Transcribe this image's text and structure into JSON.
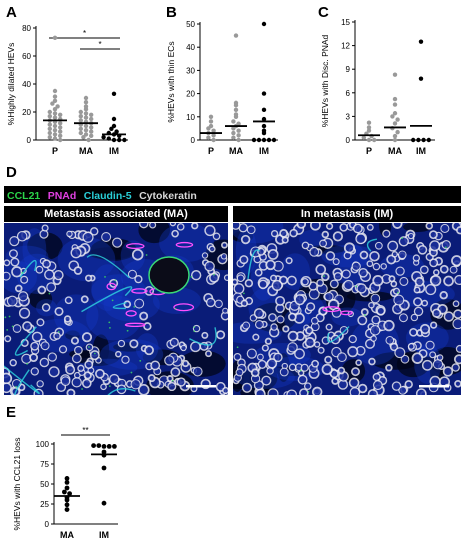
{
  "panels": {
    "A": {
      "letter": "A"
    },
    "B": {
      "letter": "B"
    },
    "C": {
      "letter": "C"
    },
    "D": {
      "letter": "D"
    },
    "E": {
      "letter": "E"
    }
  },
  "stain_legend": [
    {
      "label": "CCL21",
      "color": "#2bd44a"
    },
    {
      "label": "PNAd",
      "color": "#e040e0"
    },
    {
      "label": "Claudin-5",
      "color": "#2ad0d8"
    },
    {
      "label": "Cytokeratin",
      "color": "#d8d8d8"
    }
  ],
  "micrographs": {
    "left_title": "Metastasis associated (MA)",
    "right_title": "In metastasis (IM)"
  },
  "chart_data": [
    {
      "type": "scatter",
      "panel": "A",
      "ylabel": "%Highly dilated HEVs",
      "categories": [
        "P",
        "MA",
        "IM"
      ],
      "yticks": [
        0,
        20,
        40,
        60,
        80
      ],
      "ylim": [
        0,
        80
      ],
      "significance": [
        {
          "from": "P",
          "to": "IM",
          "label": "*"
        },
        {
          "from": "MA",
          "to": "IM",
          "label": "*"
        }
      ],
      "series": [
        {
          "category": "P",
          "marker": "gray",
          "mean": 14,
          "values": [
            73,
            35,
            31,
            28,
            26,
            24,
            22,
            20,
            19,
            18,
            17,
            16,
            15,
            14,
            13,
            12,
            11,
            10,
            9,
            8,
            7,
            6,
            5,
            4,
            3,
            2,
            1,
            0
          ]
        },
        {
          "category": "MA",
          "marker": "gray",
          "mean": 12,
          "values": [
            30,
            27,
            24,
            22,
            20,
            19,
            18,
            17,
            16,
            15,
            14,
            13,
            12,
            11,
            10,
            9,
            8,
            7,
            6,
            5,
            4,
            3,
            2,
            0
          ]
        },
        {
          "category": "IM",
          "marker": "black",
          "mean": 4,
          "values": [
            33,
            15,
            10,
            8,
            6,
            5,
            4,
            3,
            2,
            1,
            0,
            0,
            0
          ]
        }
      ]
    },
    {
      "type": "scatter",
      "panel": "B",
      "ylabel": "%HEVs with thin ECs",
      "categories": [
        "P",
        "MA",
        "IM"
      ],
      "yticks": [
        0,
        10,
        20,
        30,
        40,
        50
      ],
      "ylim": [
        0,
        50
      ],
      "significance": [],
      "series": [
        {
          "category": "P",
          "marker": "gray",
          "mean": 3,
          "values": [
            10,
            8,
            6,
            5,
            4,
            3,
            2,
            1,
            0
          ]
        },
        {
          "category": "MA",
          "marker": "gray",
          "mean": 6,
          "values": [
            45,
            16,
            15,
            13,
            11,
            10,
            8,
            7,
            6,
            5,
            4,
            3,
            2,
            1,
            0
          ]
        },
        {
          "category": "IM",
          "marker": "black",
          "mean": 8,
          "values": [
            50,
            20,
            13,
            9,
            6,
            4,
            3,
            0,
            0,
            0,
            0,
            0
          ]
        }
      ]
    },
    {
      "type": "scatter",
      "panel": "C",
      "ylabel": "%HEVs with Disc. PNAd",
      "categories": [
        "P",
        "MA",
        "IM"
      ],
      "yticks": [
        0,
        3,
        6,
        9,
        12,
        15
      ],
      "ylim": [
        0,
        15
      ],
      "significance": [],
      "series": [
        {
          "category": "P",
          "marker": "gray",
          "mean": 0.6,
          "values": [
            2.2,
            1.6,
            1.2,
            0.8,
            0.5,
            0.3,
            0,
            0
          ]
        },
        {
          "category": "MA",
          "marker": "gray",
          "mean": 1.6,
          "values": [
            8.3,
            5.2,
            4.5,
            3.4,
            3.0,
            2.6,
            2.1,
            1.5,
            1.0,
            0.5,
            0
          ]
        },
        {
          "category": "IM",
          "marker": "black",
          "mean": 1.8,
          "values": [
            12.5,
            7.8,
            0,
            0,
            0,
            0
          ]
        }
      ]
    },
    {
      "type": "scatter",
      "panel": "E",
      "ylabel": "%HEVs with CCL21 loss",
      "categories": [
        "MA",
        "IM"
      ],
      "yticks": [
        0,
        25,
        50,
        75,
        100
      ],
      "ylim": [
        0,
        100
      ],
      "significance": [
        {
          "from": "MA",
          "to": "IM",
          "label": "**"
        }
      ],
      "series": [
        {
          "category": "MA",
          "marker": "black",
          "mean": 35,
          "values": [
            57,
            52,
            45,
            40,
            38,
            33,
            30,
            24,
            18
          ]
        },
        {
          "category": "IM",
          "marker": "black",
          "mean": 87,
          "values": [
            98,
            98,
            97,
            97,
            97,
            90,
            86,
            70,
            26
          ]
        }
      ]
    }
  ]
}
